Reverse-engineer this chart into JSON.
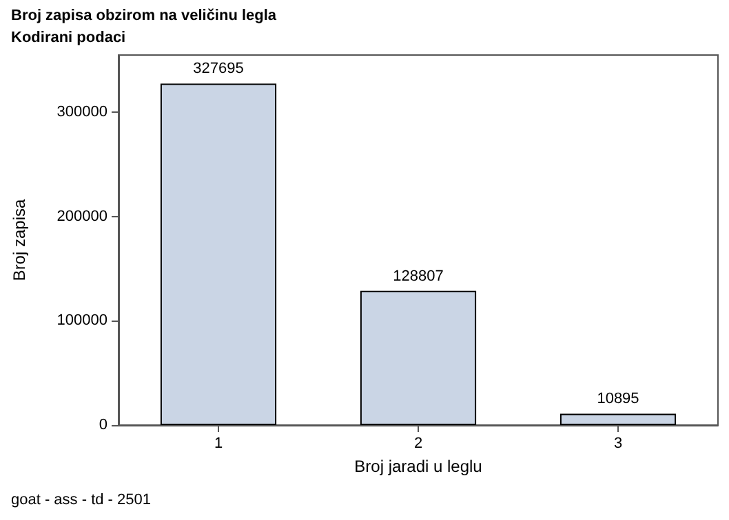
{
  "chart_data": {
    "type": "bar",
    "title": "Broj zapisa obzirom na veličinu legla",
    "subtitle": "Kodirani podaci",
    "xlabel": "Broj jaradi u leglu",
    "ylabel": "Broj zapisa",
    "categories": [
      "1",
      "2",
      "3"
    ],
    "values": [
      327695,
      128807,
      10895
    ],
    "color": "#cad5e5",
    "ylim": [
      0,
      355000
    ],
    "yticks": [
      0,
      100000,
      200000,
      300000
    ],
    "data_labels": true,
    "grid": false,
    "annotations": [
      "goat - ass - td - 2501"
    ]
  }
}
